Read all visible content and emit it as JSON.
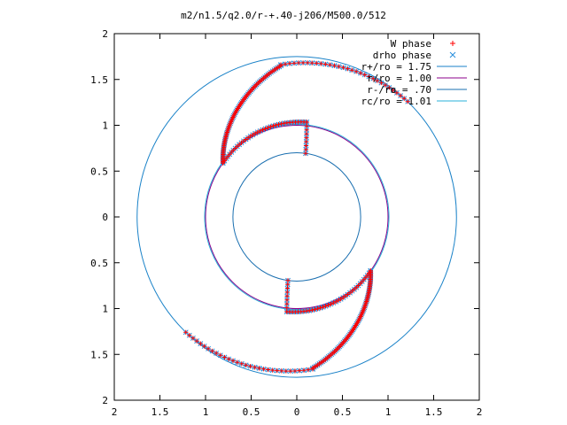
{
  "chart_data": {
    "type": "scatter",
    "title": "m2/n1.5/q2.0/r-+.40-j206/M500.0/512",
    "xlabel": "",
    "ylabel": "",
    "xlim": [
      -2,
      2
    ],
    "ylim": [
      -2,
      2
    ],
    "grid": false,
    "legend_position": "top-right",
    "x_ticks": [
      -2,
      -1.5,
      -1,
      -0.5,
      0,
      0.5,
      1,
      1.5,
      2
    ],
    "y_ticks": [
      -2,
      -1.5,
      -1,
      -0.5,
      0,
      0.5,
      1,
      1.5,
      2
    ],
    "x_tick_labels": [
      "2",
      "1.5",
      "1",
      "0.5",
      "0",
      "0.5",
      "1",
      "1.5",
      "2"
    ],
    "y_tick_labels": [
      "2",
      "1.5",
      "1",
      "0.5",
      "0",
      "0.5",
      "1",
      "1.5",
      "2"
    ],
    "series": [
      {
        "name": "W phase",
        "kind": "points",
        "marker": "+",
        "color": "#ff0000",
        "x": [],
        "y": []
      },
      {
        "name": "drho phase",
        "kind": "points",
        "marker": "x",
        "color": "#2a8fdc",
        "x": [],
        "y": []
      },
      {
        "name": "r+/ro = 1.75",
        "kind": "circle",
        "r": 1.75,
        "color": "#1a82c8"
      },
      {
        "name": "r/ro = 1.00",
        "kind": "circle",
        "r": 1.0,
        "color": "#8b008b"
      },
      {
        "name": "r-/ro = .70",
        "kind": "circle",
        "r": 0.7,
        "color": "#1a6fb0"
      },
      {
        "name": "rc/ro = 1.01",
        "kind": "circle",
        "r": 1.01,
        "color": "#2ab0d8"
      }
    ]
  }
}
